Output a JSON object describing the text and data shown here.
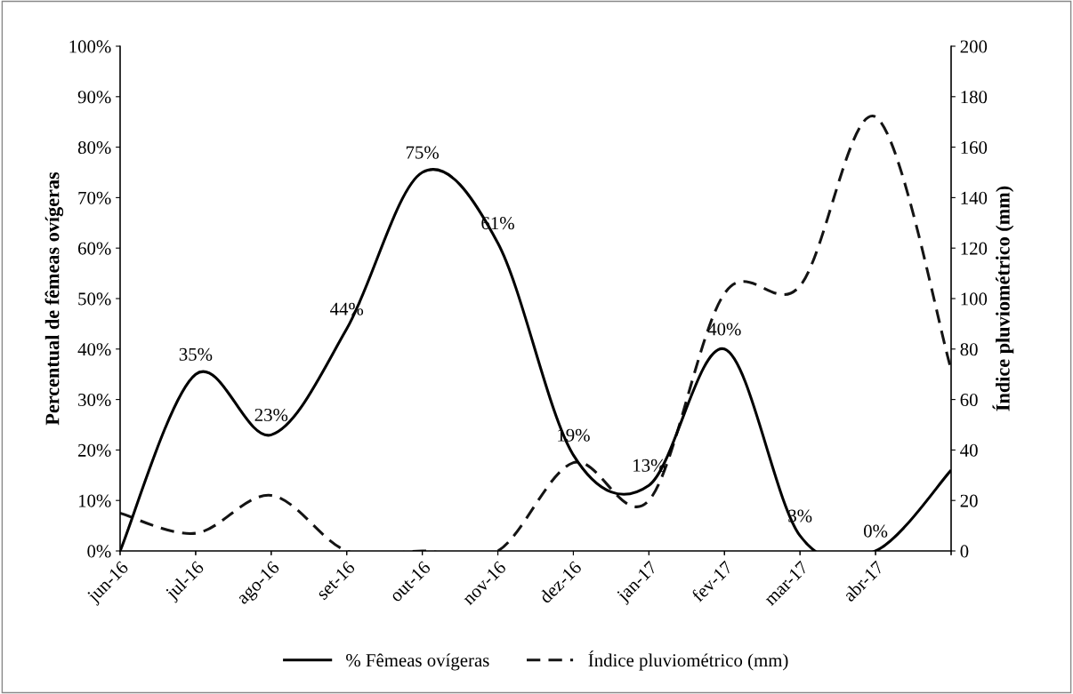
{
  "chart_data": {
    "type": "line",
    "xlabel": null,
    "ylabel": "Percentual de fêmeas ovígeras",
    "y2label": "Índice pluviométrico (mm)",
    "categories": [
      "jun-16",
      "jul-16",
      "ago-16",
      "set-16",
      "out-16",
      "nov-16",
      "dez-16",
      "jan-17",
      "fev-17",
      "mar-17",
      "abr-17",
      null
    ],
    "series": [
      {
        "name": "% Fêmeas ovígeras",
        "color": "#000000",
        "line_style": "solid",
        "values": [
          0,
          35,
          23,
          44,
          75,
          61,
          19,
          13,
          40,
          3,
          0,
          16
        ],
        "value_labels": [
          null,
          "35%",
          "23%",
          "44%",
          "75%",
          "61%",
          "19%",
          "13%",
          "40%",
          "3%",
          "0%",
          null
        ]
      },
      {
        "name": "Índice pluviométrico (mm)",
        "color": "#141414",
        "line_style": "dashed",
        "axis": "y2",
        "values": [
          15,
          7,
          22,
          0,
          0,
          0,
          35,
          20,
          102,
          105,
          172,
          72
        ]
      }
    ],
    "ylim": [
      0,
      100
    ],
    "yticks": [
      {
        "value": 0,
        "label": "0%"
      },
      {
        "value": 10,
        "label": "10%"
      },
      {
        "value": 20,
        "label": "20%"
      },
      {
        "value": 30,
        "label": "30%"
      },
      {
        "value": 40,
        "label": "40%"
      },
      {
        "value": 50,
        "label": "50%"
      },
      {
        "value": 60,
        "label": "60%"
      },
      {
        "value": 70,
        "label": "70%"
      },
      {
        "value": 80,
        "label": "80%"
      },
      {
        "value": 90,
        "label": "90%"
      },
      {
        "value": 100,
        "label": "100%"
      }
    ],
    "y2lim": [
      0,
      200
    ],
    "y2ticks": [
      0,
      20,
      40,
      60,
      80,
      100,
      120,
      140,
      160,
      180,
      200
    ],
    "grid": false,
    "legend": "bottom",
    "marker": "none"
  }
}
